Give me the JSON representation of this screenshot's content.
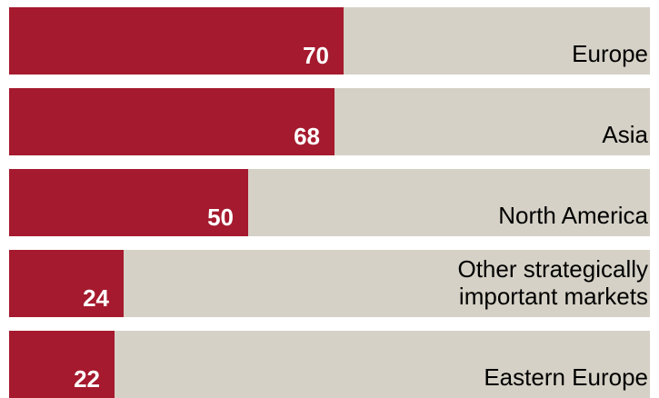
{
  "colors": {
    "bar": "#a51a2e",
    "track": "#d5d1c6",
    "background": "#ffffff",
    "value_text": "#ffffff",
    "label_text": "#000000"
  },
  "chart_data": {
    "type": "bar",
    "orientation": "horizontal",
    "categories": [
      "Europe",
      "Asia",
      "North America",
      "Other strategically\nimportant markets",
      "Eastern Europe"
    ],
    "values": [
      70,
      68,
      50,
      24,
      22
    ],
    "xlim": [
      0,
      134
    ],
    "title": "",
    "xlabel": "",
    "ylabel": "",
    "grid": false,
    "legend": "none",
    "data_labels": [
      "70",
      "68",
      "50",
      "24",
      "22"
    ]
  }
}
